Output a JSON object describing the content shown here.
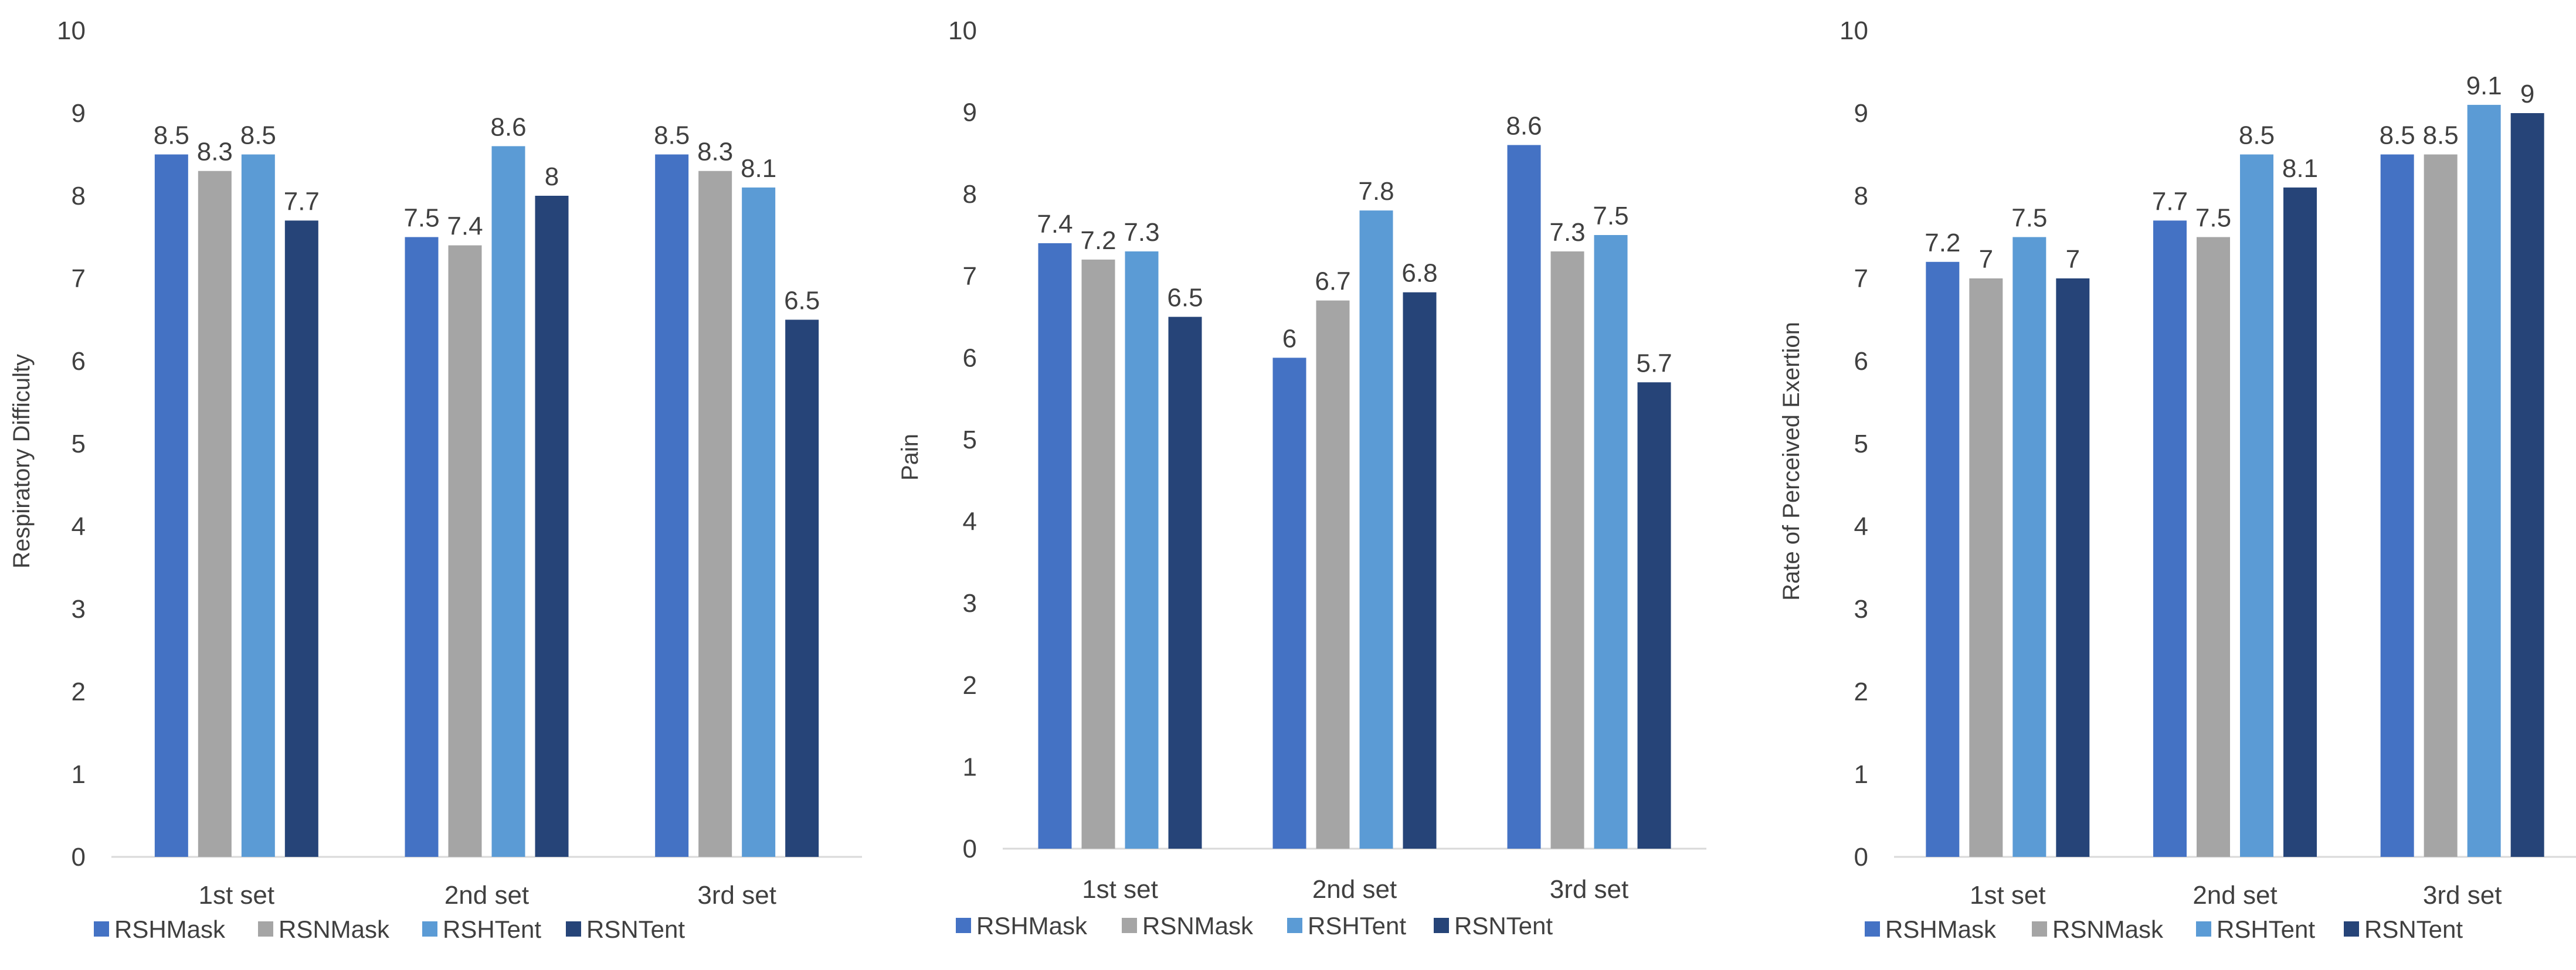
{
  "colors": {
    "RSHMask": "#4472c4",
    "RSNMask": "#a5a5a5",
    "RSHTent": "#5b9bd5",
    "RSNTent": "#264478",
    "text": "#404040",
    "axis": "#d9d9d9"
  },
  "legend": [
    "RSHMask",
    "RSNMask",
    "RSHTent",
    "RSNTent"
  ],
  "chart_data": [
    {
      "type": "bar",
      "ylabel": "Respiratory Difficulty",
      "xlabel": "",
      "ylim": [
        0,
        10
      ],
      "yticks": [
        0,
        1,
        2,
        3,
        4,
        5,
        6,
        7,
        8,
        9,
        10
      ],
      "grid": false,
      "legend_position": "bottom",
      "categories": [
        "1st set",
        "2nd set",
        "3rd set"
      ],
      "series": [
        {
          "name": "RSHMask",
          "values": [
            8.5,
            7.5,
            8.5
          ]
        },
        {
          "name": "RSNMask",
          "values": [
            8.3,
            7.4,
            8.3
          ]
        },
        {
          "name": "RSHTent",
          "values": [
            8.5,
            8.6,
            8.1
          ]
        },
        {
          "name": "RSNTent",
          "values": [
            7.7,
            8,
            6.5
          ]
        }
      ]
    },
    {
      "type": "bar",
      "ylabel": "Pain",
      "xlabel": "",
      "ylim": [
        0,
        10
      ],
      "yticks": [
        0,
        1,
        2,
        3,
        4,
        5,
        6,
        7,
        8,
        9,
        10
      ],
      "grid": false,
      "legend_position": "bottom",
      "categories": [
        "1st set",
        "2nd set",
        "3rd set"
      ],
      "series": [
        {
          "name": "RSHMask",
          "values": [
            7.4,
            6,
            8.6
          ]
        },
        {
          "name": "RSNMask",
          "values": [
            7.2,
            6.7,
            7.3
          ]
        },
        {
          "name": "RSHTent",
          "values": [
            7.3,
            7.8,
            7.5
          ]
        },
        {
          "name": "RSNTent",
          "values": [
            6.5,
            6.8,
            5.7
          ]
        }
      ]
    },
    {
      "type": "bar",
      "ylabel": "Rate of Perceived Exertion",
      "xlabel": "",
      "ylim": [
        0,
        10
      ],
      "yticks": [
        0,
        1,
        2,
        3,
        4,
        5,
        6,
        7,
        8,
        9,
        10
      ],
      "grid": false,
      "legend_position": "bottom",
      "categories": [
        "1st set",
        "2nd set",
        "3rd set"
      ],
      "series": [
        {
          "name": "RSHMask",
          "values": [
            7.2,
            7.7,
            8.5
          ]
        },
        {
          "name": "RSNMask",
          "values": [
            7,
            7.5,
            8.5
          ]
        },
        {
          "name": "RSHTent",
          "values": [
            7.5,
            8.5,
            9.1
          ]
        },
        {
          "name": "RSNTent",
          "values": [
            7,
            8.1,
            9
          ]
        }
      ]
    }
  ]
}
